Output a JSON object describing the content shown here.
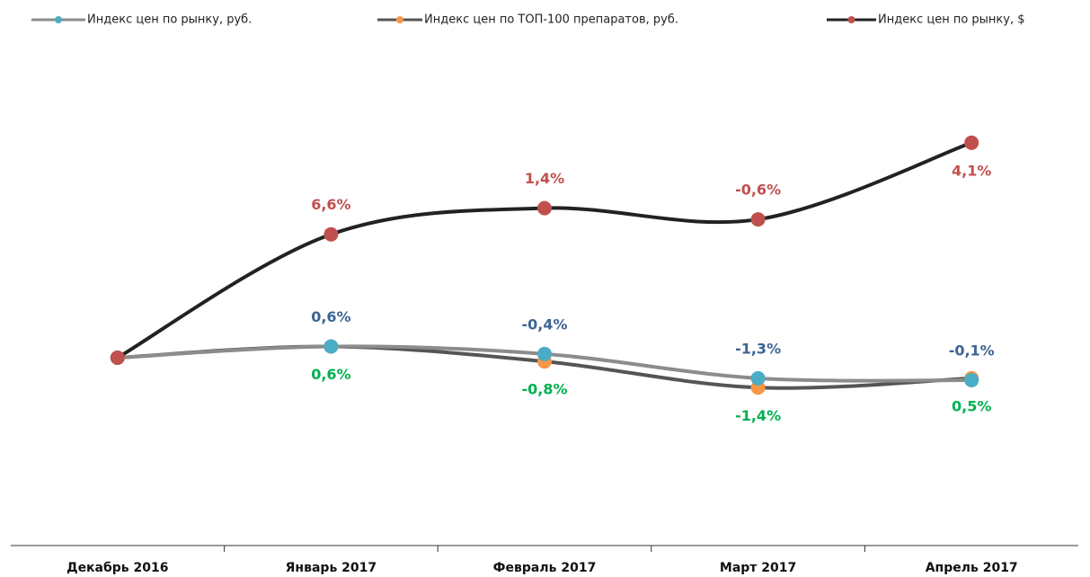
{
  "chart_data": {
    "type": "line",
    "categories": [
      "Декабрь 2016",
      "Январь 2017",
      "Февраль 2017",
      "Март 2017",
      "Апрель 2017"
    ],
    "series": [
      {
        "name": "Индекс цен по рынку, руб.",
        "color": "#8c8c8c",
        "marker_color": "#4bacc6",
        "label_color": "#3d6496",
        "values": [
          0,
          0.6,
          -0.4,
          -1.3,
          -0.1
        ],
        "value_labels": [
          null,
          "0,6%",
          "-0,4%",
          "-1,3%",
          "-0,1%"
        ]
      },
      {
        "name": "Индекс цен по ТОП-100 препаратов, руб.",
        "color": "#555555",
        "marker_color": "#f79646",
        "label_color": "#00b050",
        "values": [
          0,
          0.6,
          -0.8,
          -1.4,
          0.5
        ],
        "value_labels": [
          null,
          "0,6%",
          "-0,8%",
          "-1,4%",
          "0,5%"
        ]
      },
      {
        "name": "Индекс цен по рынку, $",
        "color": "#222222",
        "marker_color": "#c0504d",
        "label_color": "#c0504d",
        "values": [
          0,
          6.6,
          1.4,
          -0.6,
          4.1
        ],
        "value_labels": [
          null,
          "6,6%",
          "1,4%",
          "-0,6%",
          "4,1%"
        ]
      }
    ],
    "cumulative": true
  }
}
